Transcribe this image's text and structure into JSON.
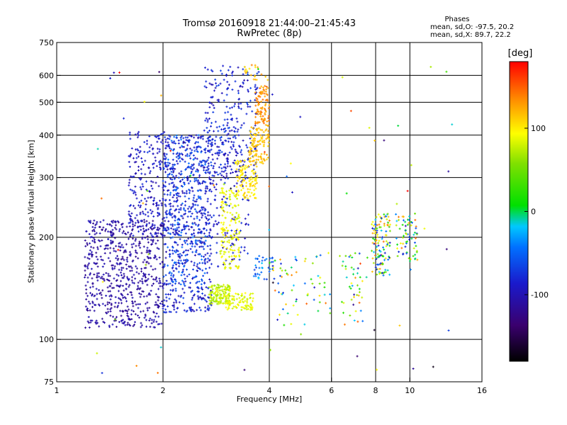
{
  "chart_data": {
    "type": "scatter",
    "title": "Tromsø 20160918 21:44:00–21:45:43",
    "subtitle": "RwPretec (8p)",
    "xlabel": "Frequency [MHz]",
    "ylabel": "Stationary phase Virtual Height [km]",
    "x_scale": "log",
    "y_scale": "log",
    "xlim": [
      1,
      16
    ],
    "ylim": [
      75,
      750
    ],
    "x_ticks": [
      1,
      2,
      4,
      6,
      8,
      10,
      16
    ],
    "y_ticks": [
      75,
      100,
      200,
      300,
      400,
      500,
      600,
      750
    ],
    "x_gridlines": [
      2,
      4,
      6,
      8,
      10
    ],
    "y_gridlines": [
      100,
      200,
      300,
      400,
      500,
      600
    ],
    "grid": true,
    "legend": {
      "heading": "Phases",
      "lines": [
        "mean, sd,O: -97.5, 20.2",
        "mean, sd,X:  89.7, 22.2"
      ],
      "placement": "top-right"
    },
    "colorbar": {
      "label": "[deg]",
      "ticks": [
        100,
        0,
        -100
      ],
      "range": [
        -180,
        180
      ],
      "placement": "right"
    },
    "clusters": [
      {
        "x": [
          1.2,
          2.0
        ],
        "y": [
          108,
          225
        ],
        "value": [
          -125,
          -100
        ],
        "count": 650
      },
      {
        "x": [
          1.6,
          2.05
        ],
        "y": [
          200,
          410
        ],
        "value": [
          -110,
          -80
        ],
        "count": 230
      },
      {
        "x": [
          2.0,
          2.75
        ],
        "y": [
          120,
          400
        ],
        "value": [
          -110,
          -65
        ],
        "count": 650
      },
      {
        "x": [
          2.05,
          2.65
        ],
        "y": [
          145,
          400
        ],
        "value": [
          -85,
          -40
        ],
        "count": 200
      },
      {
        "x": [
          2.6,
          3.7
        ],
        "y": [
          300,
          640
        ],
        "value": [
          -110,
          -65
        ],
        "count": 260
      },
      {
        "x": [
          2.7,
          3.5
        ],
        "y": [
          160,
          400
        ],
        "value": [
          -110,
          -70
        ],
        "count": 150
      },
      {
        "x": [
          2.7,
          3.1
        ],
        "y": [
          127,
          145
        ],
        "value": [
          60,
          90
        ],
        "count": 120
      },
      {
        "x": [
          3.0,
          3.6
        ],
        "y": [
          122,
          137
        ],
        "value": [
          75,
          100
        ],
        "count": 90
      },
      {
        "x": [
          2.9,
          3.3
        ],
        "y": [
          160,
          280
        ],
        "value": [
          75,
          105
        ],
        "count": 150
      },
      {
        "x": [
          3.2,
          3.7
        ],
        "y": [
          260,
          340
        ],
        "value": [
          95,
          115
        ],
        "count": 110
      },
      {
        "x": [
          3.5,
          4.0
        ],
        "y": [
          330,
          430
        ],
        "value": [
          105,
          130
        ],
        "count": 110
      },
      {
        "x": [
          3.65,
          4.0
        ],
        "y": [
          430,
          560
        ],
        "value": [
          120,
          150
        ],
        "count": 90
      },
      {
        "x": [
          3.4,
          4.0
        ],
        "y": [
          580,
          650
        ],
        "value": [
          90,
          140
        ],
        "count": 20
      },
      {
        "x": [
          3.6,
          4.1
        ],
        "y": [
          150,
          175
        ],
        "value": [
          -75,
          -20
        ],
        "count": 35
      },
      {
        "x": [
          4.0,
          6.0
        ],
        "y": [
          110,
          180
        ],
        "value": [
          -110,
          150
        ],
        "count": 65
      },
      {
        "x": [
          6.3,
          7.6
        ],
        "y": [
          110,
          180
        ],
        "value": [
          -110,
          160
        ],
        "count": 45
      },
      {
        "x": [
          7.8,
          8.8
        ],
        "y": [
          155,
          235
        ],
        "value": [
          -100,
          150
        ],
        "count": 130
      },
      {
        "x": [
          9.1,
          10.5
        ],
        "y": [
          170,
          235
        ],
        "value": [
          -110,
          150
        ],
        "count": 70
      },
      {
        "x": [
          1.3,
          13.5
        ],
        "y": [
          78,
          640
        ],
        "value": [
          -180,
          180
        ],
        "count": 80
      }
    ]
  }
}
